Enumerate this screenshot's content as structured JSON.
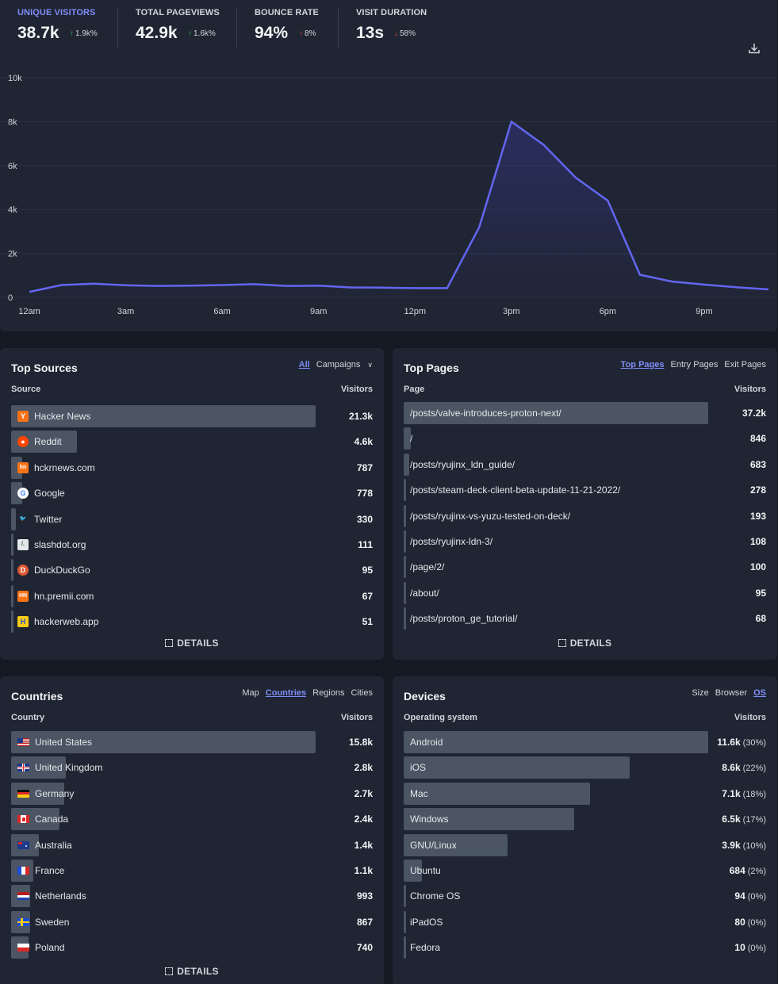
{
  "metrics": [
    {
      "label": "UNIQUE VISITORS",
      "value": "38.7k",
      "change": "1.9k%",
      "direction": "up",
      "color": "#22c55e",
      "active": true
    },
    {
      "label": "TOTAL PAGEVIEWS",
      "value": "42.9k",
      "change": "1.6k%",
      "direction": "up",
      "color": "#22c55e",
      "active": false
    },
    {
      "label": "BOUNCE RATE",
      "value": "94%",
      "change": "8%",
      "direction": "up",
      "color": "#ef4444",
      "active": false
    },
    {
      "label": "VISIT DURATION",
      "value": "13s",
      "change": "58%",
      "direction": "down",
      "color": "#ef4444",
      "active": false
    }
  ],
  "chart_data": {
    "type": "area",
    "x": [
      "12am",
      "1am",
      "2am",
      "3am",
      "4am",
      "5am",
      "6am",
      "7am",
      "8am",
      "9am",
      "10am",
      "11am",
      "12pm",
      "1pm",
      "2pm",
      "3pm",
      "4pm",
      "5pm",
      "6pm",
      "7pm",
      "8pm",
      "9pm",
      "10pm",
      "11pm"
    ],
    "xticks": [
      "12am",
      "3am",
      "6am",
      "9am",
      "12pm",
      "3pm",
      "6pm",
      "9pm"
    ],
    "yticks": [
      "0",
      "2k",
      "4k",
      "6k",
      "8k",
      "10k"
    ],
    "ylim": [
      0,
      10000
    ],
    "series": [
      {
        "values": [
          250,
          560,
          620,
          550,
          520,
          530,
          560,
          600,
          520,
          530,
          450,
          440,
          420,
          420,
          3200,
          8000,
          6950,
          5450,
          4400,
          1030,
          720,
          580,
          460,
          360
        ]
      }
    ],
    "line_color": "#6366f1",
    "grid": true
  },
  "sources": {
    "title": "Top Sources",
    "tabs": [
      "All",
      "Campaigns"
    ],
    "active_tab": "All",
    "col_left": "Source",
    "col_right": "Visitors",
    "rows": [
      {
        "label": "Hacker News",
        "value": "21.3k",
        "icon": "hacker-news-icon",
        "frac": 1.0
      },
      {
        "label": "Reddit",
        "value": "4.6k",
        "icon": "reddit-icon",
        "frac": 0.215
      },
      {
        "label": "hckrnews.com",
        "value": "787",
        "icon": "hckrnews-icon",
        "frac": 0.037
      },
      {
        "label": "Google",
        "value": "778",
        "icon": "google-icon",
        "frac": 0.037
      },
      {
        "label": "Twitter",
        "value": "330",
        "icon": "twitter-icon",
        "frac": 0.016
      },
      {
        "label": "slashdot.org",
        "value": "111",
        "icon": "slashdot-icon",
        "frac": 0.005
      },
      {
        "label": "DuckDuckGo",
        "value": "95",
        "icon": "duckduckgo-icon",
        "frac": 0.004
      },
      {
        "label": "hn.premii.com",
        "value": "67",
        "icon": "hn-premii-icon",
        "frac": 0.003
      },
      {
        "label": "hackerweb.app",
        "value": "51",
        "icon": "hackerweb-icon",
        "frac": 0.002
      }
    ],
    "details": "DETAILS"
  },
  "pages": {
    "title": "Top Pages",
    "tabs": [
      "Top Pages",
      "Entry Pages",
      "Exit Pages"
    ],
    "active_tab": "Top Pages",
    "col_left": "Page",
    "col_right": "Visitors",
    "rows": [
      {
        "label": "/posts/valve-introduces-proton-next/",
        "value": "37.2k",
        "frac": 1.0
      },
      {
        "label": "/",
        "value": "846",
        "frac": 0.023
      },
      {
        "label": "/posts/ryujinx_ldn_guide/",
        "value": "683",
        "frac": 0.018
      },
      {
        "label": "/posts/steam-deck-client-beta-update-11-21-2022/",
        "value": "278",
        "frac": 0.007
      },
      {
        "label": "/posts/ryujinx-vs-yuzu-tested-on-deck/",
        "value": "193",
        "frac": 0.005
      },
      {
        "label": "/posts/ryujinx-ldn-3/",
        "value": "108",
        "frac": 0.003
      },
      {
        "label": "/page/2/",
        "value": "100",
        "frac": 0.003
      },
      {
        "label": "/about/",
        "value": "95",
        "frac": 0.003
      },
      {
        "label": "/posts/proton_ge_tutorial/",
        "value": "68",
        "frac": 0.002
      }
    ],
    "details": "DETAILS"
  },
  "countries": {
    "title": "Countries",
    "tabs": [
      "Map",
      "Countries",
      "Regions",
      "Cities"
    ],
    "active_tab": "Countries",
    "col_left": "Country",
    "col_right": "Visitors",
    "rows": [
      {
        "label": "United States",
        "value": "15.8k",
        "flag": "us",
        "frac": 1.0
      },
      {
        "label": "United Kingdom",
        "value": "2.8k",
        "flag": "gb",
        "frac": 0.18
      },
      {
        "label": "Germany",
        "value": "2.7k",
        "flag": "de",
        "frac": 0.174
      },
      {
        "label": "Canada",
        "value": "2.4k",
        "flag": "ca",
        "frac": 0.158
      },
      {
        "label": "Australia",
        "value": "1.4k",
        "flag": "au",
        "frac": 0.09
      },
      {
        "label": "France",
        "value": "1.1k",
        "flag": "fr",
        "frac": 0.072
      },
      {
        "label": "Netherlands",
        "value": "993",
        "flag": "nl",
        "frac": 0.063
      },
      {
        "label": "Sweden",
        "value": "867",
        "flag": "se",
        "frac": 0.063
      },
      {
        "label": "Poland",
        "value": "740",
        "flag": "pl",
        "frac": 0.058
      }
    ],
    "details": "DETAILS"
  },
  "devices": {
    "title": "Devices",
    "tabs": [
      "Size",
      "Browser",
      "OS"
    ],
    "active_tab": "OS",
    "col_left": "Operating system",
    "col_right": "Visitors",
    "rows": [
      {
        "label": "Android",
        "value": "11.6k",
        "pct": "(30%)",
        "frac": 1.0
      },
      {
        "label": "iOS",
        "value": "8.6k",
        "pct": "(22%)",
        "frac": 0.742
      },
      {
        "label": "Mac",
        "value": "7.1k",
        "pct": "(18%)",
        "frac": 0.612
      },
      {
        "label": "Windows",
        "value": "6.5k",
        "pct": "(17%)",
        "frac": 0.56
      },
      {
        "label": "GNU/Linux",
        "value": "3.9k",
        "pct": "(10%)",
        "frac": 0.34
      },
      {
        "label": "Ubuntu",
        "value": "684",
        "pct": "(2%)",
        "frac": 0.059
      },
      {
        "label": "Chrome OS",
        "value": "94",
        "pct": "(0%)",
        "frac": 0.008
      },
      {
        "label": "iPadOS",
        "value": "80",
        "pct": "(0%)",
        "frac": 0.007
      },
      {
        "label": "Fedora",
        "value": "10",
        "pct": "(0%)",
        "frac": 0.001
      }
    ]
  }
}
